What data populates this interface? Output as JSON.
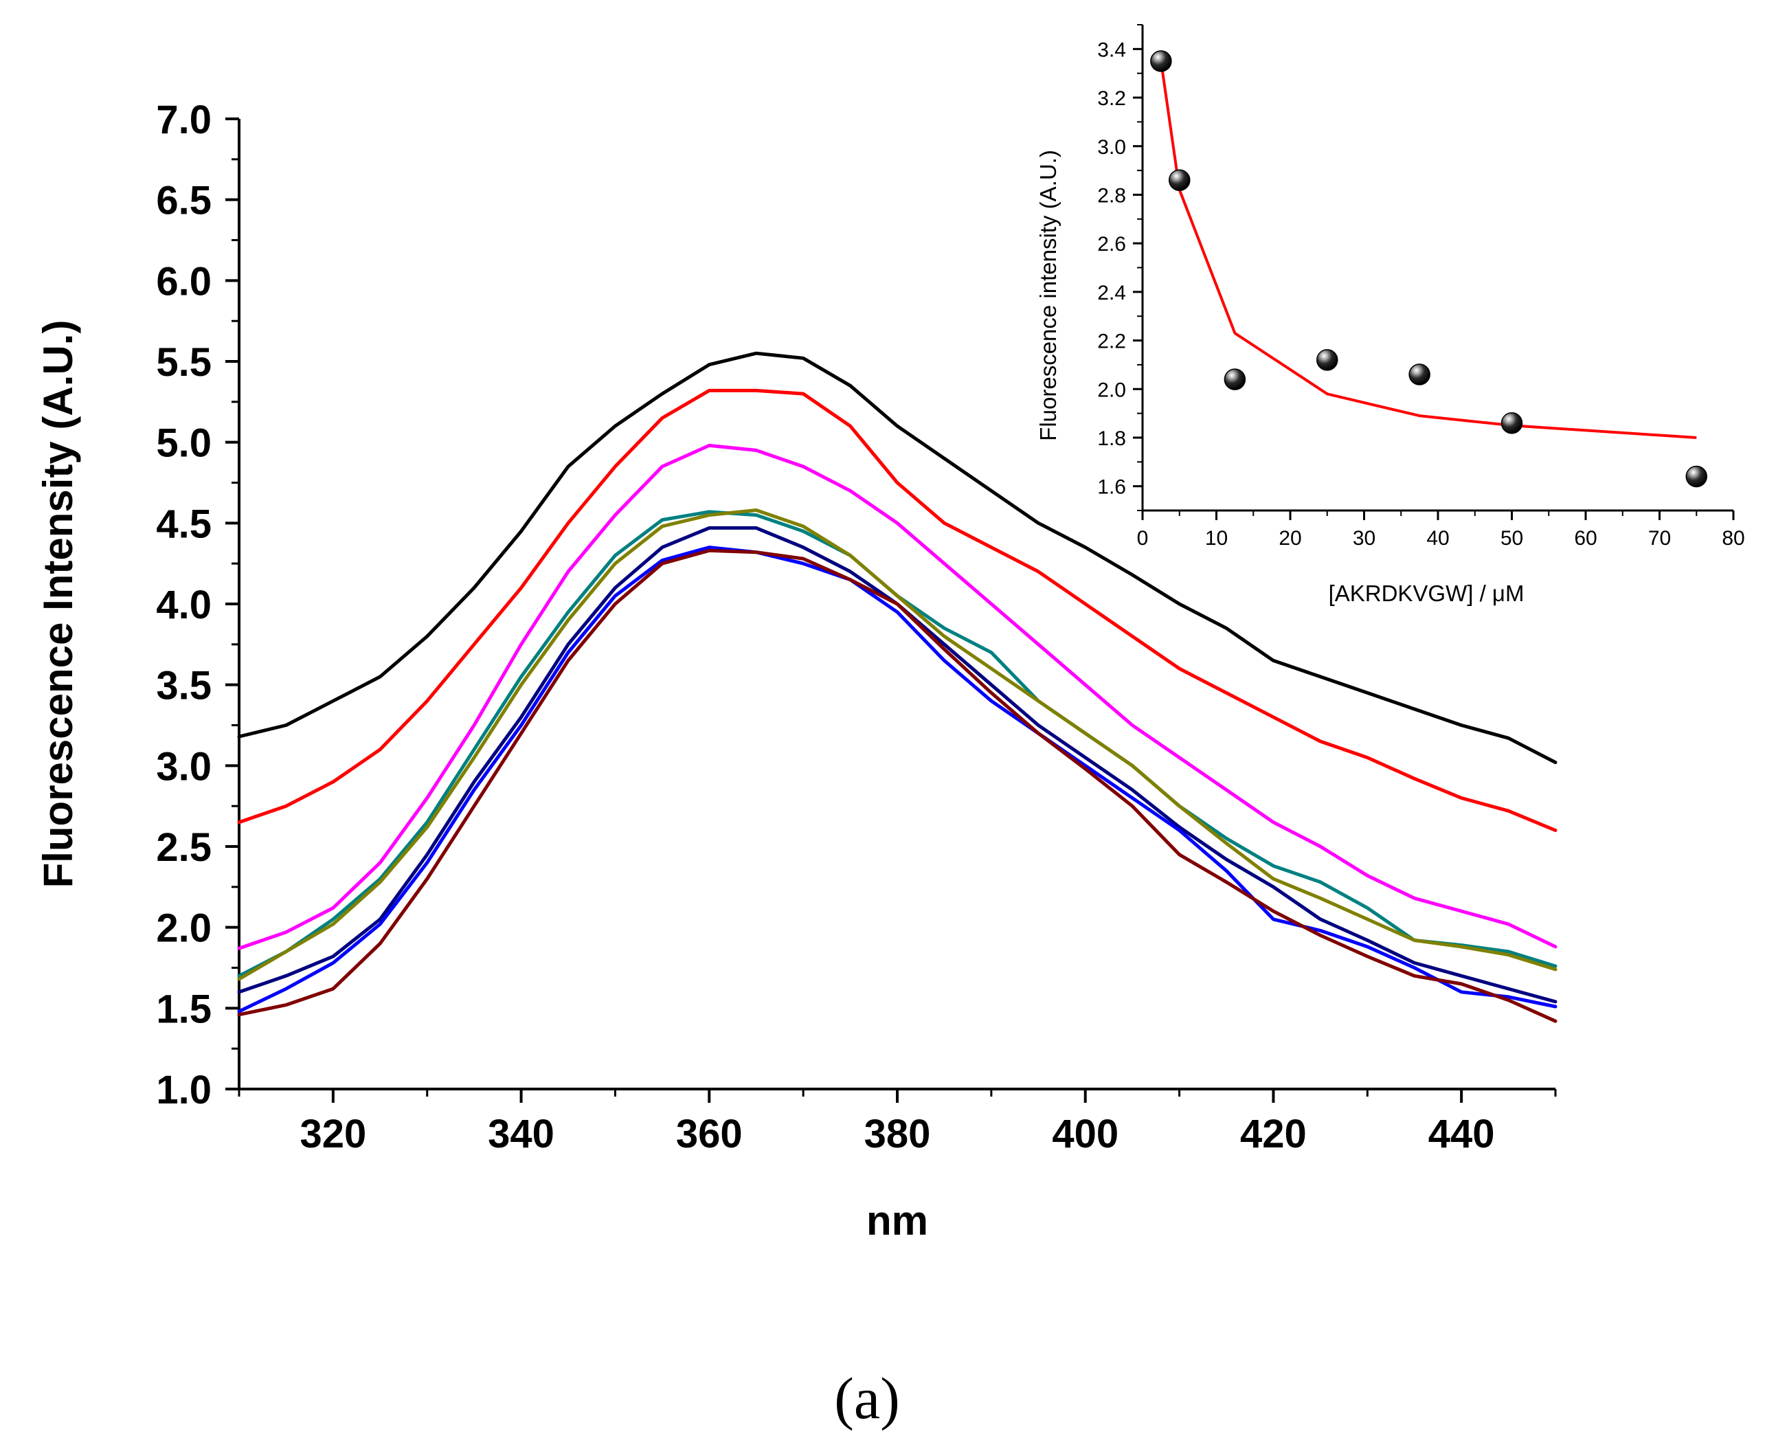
{
  "panel_label": "(a)",
  "chart_data": [
    {
      "id": "main",
      "type": "line",
      "title": "",
      "xlabel": "nm",
      "ylabel": "Fluorescence Intensity (A.U.)",
      "xlim": [
        310,
        450
      ],
      "ylim": [
        1.0,
        7.0
      ],
      "xticks": [
        320,
        340,
        360,
        380,
        400,
        420,
        440
      ],
      "xtick_labels": [
        "320",
        "340",
        "360",
        "380",
        "400",
        "420",
        "440"
      ],
      "yticks": [
        1.0,
        1.5,
        2.0,
        2.5,
        3.0,
        3.5,
        4.0,
        4.5,
        5.0,
        5.5,
        6.0,
        6.5,
        7.0
      ],
      "ytick_labels": [
        "1.0",
        "1.5",
        "2.0",
        "2.5",
        "3.0",
        "3.5",
        "4.0",
        "4.5",
        "5.0",
        "5.5",
        "6.0",
        "6.5",
        "7.0"
      ],
      "x": [
        310,
        315,
        320,
        325,
        330,
        335,
        340,
        345,
        350,
        355,
        360,
        365,
        370,
        375,
        380,
        385,
        390,
        395,
        400,
        405,
        410,
        415,
        420,
        425,
        430,
        435,
        440,
        445,
        450
      ],
      "series": [
        {
          "name": "black",
          "color": "#000000",
          "values": [
            3.18,
            3.25,
            3.4,
            3.55,
            3.8,
            4.1,
            4.45,
            4.85,
            5.1,
            5.3,
            5.48,
            5.55,
            5.52,
            5.35,
            5.1,
            4.9,
            4.7,
            4.5,
            4.35,
            4.18,
            4.0,
            3.85,
            3.65,
            3.55,
            3.45,
            3.35,
            3.25,
            3.17,
            3.02
          ]
        },
        {
          "name": "red",
          "color": "#ff0000",
          "values": [
            2.65,
            2.75,
            2.9,
            3.1,
            3.4,
            3.75,
            4.1,
            4.5,
            4.85,
            5.15,
            5.32,
            5.32,
            5.3,
            5.1,
            4.75,
            4.5,
            4.35,
            4.2,
            4.0,
            3.8,
            3.6,
            3.45,
            3.3,
            3.15,
            3.05,
            2.92,
            2.8,
            2.72,
            2.6
          ]
        },
        {
          "name": "magenta",
          "color": "#ff00ff",
          "values": [
            1.87,
            1.97,
            2.12,
            2.4,
            2.8,
            3.25,
            3.75,
            4.2,
            4.55,
            4.85,
            4.98,
            4.95,
            4.85,
            4.7,
            4.5,
            4.25,
            4.0,
            3.75,
            3.5,
            3.25,
            3.05,
            2.85,
            2.65,
            2.5,
            2.32,
            2.18,
            2.1,
            2.02,
            1.88
          ]
        },
        {
          "name": "teal",
          "color": "#008080",
          "values": [
            1.7,
            1.85,
            2.05,
            2.3,
            2.65,
            3.1,
            3.55,
            3.95,
            4.3,
            4.52,
            4.57,
            4.55,
            4.45,
            4.3,
            4.05,
            3.85,
            3.7,
            3.4,
            3.2,
            3.0,
            2.75,
            2.55,
            2.38,
            2.28,
            2.12,
            1.92,
            1.89,
            1.85,
            1.76
          ]
        },
        {
          "name": "olive",
          "color": "#808000",
          "values": [
            1.68,
            1.85,
            2.02,
            2.28,
            2.62,
            3.05,
            3.5,
            3.9,
            4.25,
            4.48,
            4.55,
            4.58,
            4.48,
            4.3,
            4.05,
            3.8,
            3.6,
            3.4,
            3.2,
            3.0,
            2.75,
            2.52,
            2.3,
            2.18,
            2.05,
            1.92,
            1.88,
            1.83,
            1.74
          ]
        },
        {
          "name": "navy",
          "color": "#000080",
          "values": [
            1.6,
            1.7,
            1.82,
            2.05,
            2.45,
            2.9,
            3.3,
            3.75,
            4.1,
            4.35,
            4.47,
            4.47,
            4.35,
            4.2,
            4.0,
            3.75,
            3.5,
            3.25,
            3.05,
            2.85,
            2.62,
            2.42,
            2.25,
            2.05,
            1.92,
            1.78,
            1.7,
            1.62,
            1.54
          ]
        },
        {
          "name": "blue",
          "color": "#0000ff",
          "values": [
            1.48,
            1.62,
            1.78,
            2.02,
            2.4,
            2.85,
            3.25,
            3.7,
            4.05,
            4.27,
            4.35,
            4.32,
            4.25,
            4.15,
            3.95,
            3.65,
            3.4,
            3.2,
            3.0,
            2.8,
            2.6,
            2.35,
            2.05,
            1.98,
            1.88,
            1.75,
            1.6,
            1.57,
            1.51
          ]
        },
        {
          "name": "dark-red",
          "color": "#800000",
          "values": [
            1.46,
            1.52,
            1.62,
            1.9,
            2.3,
            2.75,
            3.2,
            3.65,
            4.0,
            4.25,
            4.33,
            4.32,
            4.28,
            4.15,
            4.0,
            3.72,
            3.45,
            3.2,
            2.98,
            2.75,
            2.45,
            2.28,
            2.1,
            1.95,
            1.82,
            1.7,
            1.65,
            1.55,
            1.42
          ]
        }
      ]
    },
    {
      "id": "inset",
      "type": "scatter",
      "title": "",
      "xlabel": "[AKRDKVGW] / μM",
      "ylabel": "Fluorescence intensity (A.U.)",
      "xlim": [
        0,
        80
      ],
      "ylim": [
        1.5,
        3.5
      ],
      "xticks": [
        0,
        10,
        20,
        30,
        40,
        50,
        60,
        70,
        80
      ],
      "xtick_labels": [
        "0",
        "10",
        "20",
        "30",
        "40",
        "50",
        "60",
        "70",
        "80"
      ],
      "yticks": [
        1.6,
        1.8,
        2.0,
        2.2,
        2.4,
        2.6,
        2.8,
        3.0,
        3.2,
        3.4
      ],
      "ytick_labels": [
        "1.6",
        "1.8",
        "2.0",
        "2.2",
        "2.4",
        "2.6",
        "2.8",
        "3.0",
        "3.2",
        "3.4"
      ],
      "points": {
        "x": [
          2.5,
          5,
          12.5,
          25,
          37.5,
          50,
          75
        ],
        "y": [
          3.35,
          2.86,
          2.04,
          2.12,
          2.06,
          1.86,
          1.64
        ]
      },
      "fit": {
        "color": "#ff0000",
        "x": [
          2.5,
          5,
          12.5,
          25,
          37.5,
          50,
          75
        ],
        "y": [
          3.35,
          2.82,
          2.23,
          1.98,
          1.89,
          1.85,
          1.8
        ]
      }
    }
  ]
}
